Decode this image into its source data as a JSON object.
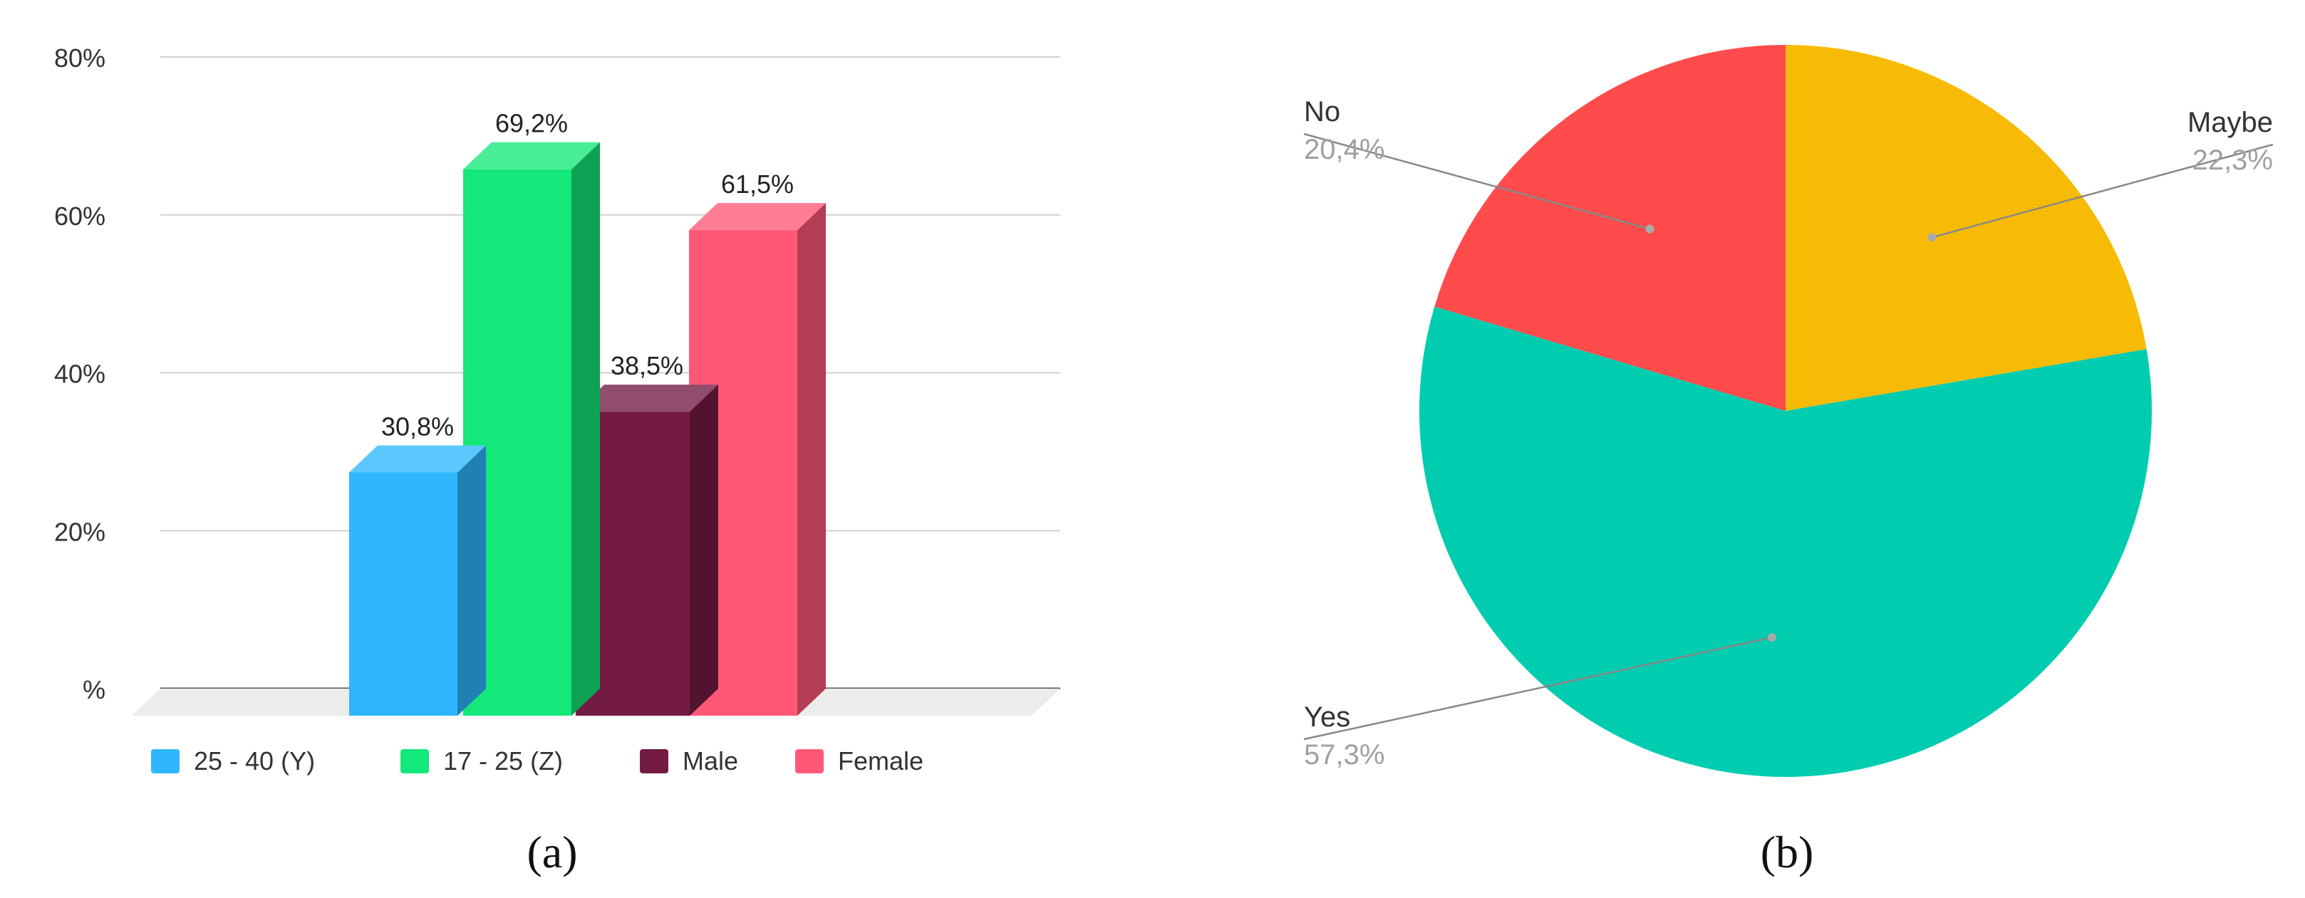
{
  "panels": [
    {
      "label": "(a)"
    },
    {
      "label": "(b)"
    }
  ],
  "colors": {
    "series_25_40": "#2eb7ff",
    "series_17_25": "#14e87a",
    "male": "#731b42",
    "female": "#ff5876",
    "maybe": "#f8bb05",
    "yes": "#00ccb0",
    "no": "#ff4b4b"
  },
  "chart_data": [
    {
      "type": "bar",
      "categories": [
        "25 - 40 (Y)",
        "17 - 25 (Z)",
        "Male",
        "Female"
      ],
      "values": [
        30.8,
        69.2,
        38.5,
        61.5
      ],
      "value_labels": [
        "30,8%",
        "69,2%",
        "38,5%",
        "61,5%"
      ],
      "yticks": [
        "%",
        "20%",
        "40%",
        "60%",
        "80%"
      ],
      "ylim": [
        0,
        80
      ],
      "grid": true,
      "legend": "bottom",
      "style": "3d"
    },
    {
      "type": "pie",
      "labels": [
        "Maybe",
        "Yes",
        "No"
      ],
      "values": [
        22.3,
        57.3,
        20.4
      ],
      "value_labels": [
        "22,3%",
        "57,3%",
        "20,4%"
      ],
      "start": "top",
      "direction": "clockwise"
    }
  ]
}
